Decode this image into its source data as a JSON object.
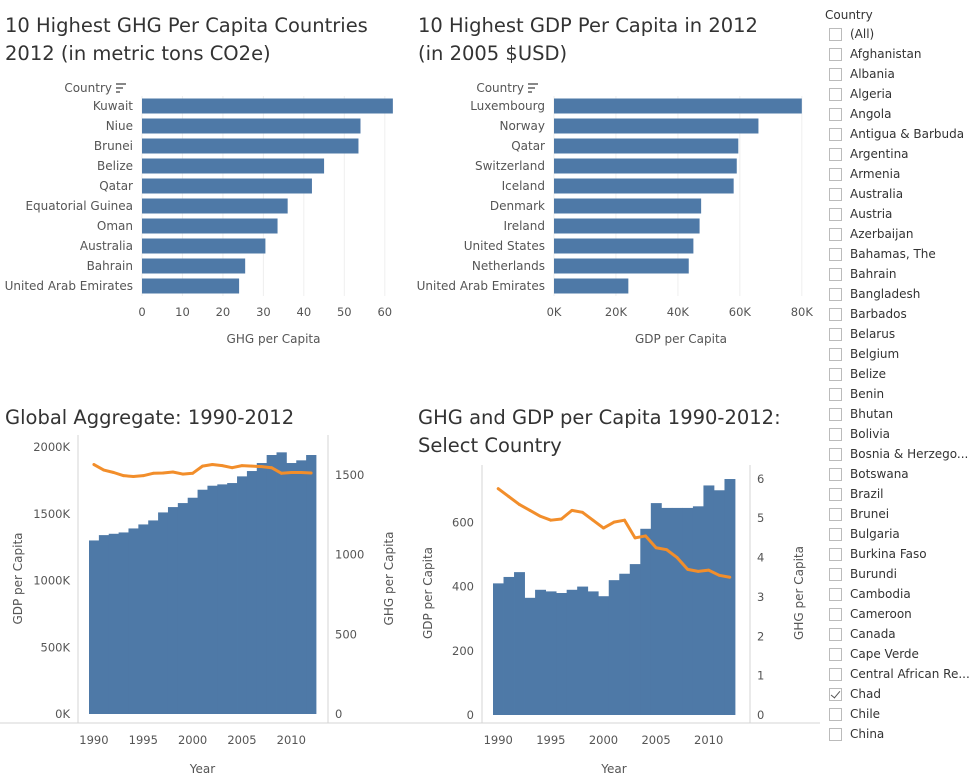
{
  "titles": {
    "ghg_top10": "10 Highest GHG Per Capita Countries\n2012 (in metric tons CO2e)",
    "gdp_top10": "10 Highest GDP Per Capita in 2012\n(in 2005 $USD)",
    "global": "Global Aggregate: 1990-2012",
    "select": "GHG and GDP per Capita 1990-2012:\nSelect Country"
  },
  "colors": {
    "bar": "#4e79a7",
    "line": "#f28e2b",
    "axis": "#d4d4d4",
    "grid": "#efefef"
  },
  "icons": {
    "sort": "sort-descending-icon",
    "check": "checkmark-icon"
  },
  "filter": {
    "title": "Country",
    "items": [
      {
        "label": "(All)",
        "checked": false
      },
      {
        "label": "Afghanistan",
        "checked": false
      },
      {
        "label": "Albania",
        "checked": false
      },
      {
        "label": "Algeria",
        "checked": false
      },
      {
        "label": "Angola",
        "checked": false
      },
      {
        "label": "Antigua & Barbuda",
        "checked": false
      },
      {
        "label": "Argentina",
        "checked": false
      },
      {
        "label": "Armenia",
        "checked": false
      },
      {
        "label": "Australia",
        "checked": false
      },
      {
        "label": "Austria",
        "checked": false
      },
      {
        "label": "Azerbaijan",
        "checked": false
      },
      {
        "label": "Bahamas, The",
        "checked": false
      },
      {
        "label": "Bahrain",
        "checked": false
      },
      {
        "label": "Bangladesh",
        "checked": false
      },
      {
        "label": "Barbados",
        "checked": false
      },
      {
        "label": "Belarus",
        "checked": false
      },
      {
        "label": "Belgium",
        "checked": false
      },
      {
        "label": "Belize",
        "checked": false
      },
      {
        "label": "Benin",
        "checked": false
      },
      {
        "label": "Bhutan",
        "checked": false
      },
      {
        "label": "Bolivia",
        "checked": false
      },
      {
        "label": "Bosnia & Herzego...",
        "checked": false
      },
      {
        "label": "Botswana",
        "checked": false
      },
      {
        "label": "Brazil",
        "checked": false
      },
      {
        "label": "Brunei",
        "checked": false
      },
      {
        "label": "Bulgaria",
        "checked": false
      },
      {
        "label": "Burkina Faso",
        "checked": false
      },
      {
        "label": "Burundi",
        "checked": false
      },
      {
        "label": "Cambodia",
        "checked": false
      },
      {
        "label": "Cameroon",
        "checked": false
      },
      {
        "label": "Canada",
        "checked": false
      },
      {
        "label": "Cape Verde",
        "checked": false
      },
      {
        "label": "Central African Re...",
        "checked": false
      },
      {
        "label": "Chad",
        "checked": true
      },
      {
        "label": "Chile",
        "checked": false
      },
      {
        "label": "China",
        "checked": false
      }
    ]
  },
  "chart_data": [
    {
      "id": "ghg_top10",
      "type": "bar",
      "orientation": "horizontal",
      "row_header": "Country",
      "xlabel": "GHG per Capita",
      "xlim": [
        0,
        65
      ],
      "ticks": [
        0,
        10,
        20,
        30,
        40,
        50,
        60
      ],
      "tick_labels": [
        "0",
        "10",
        "20",
        "30",
        "40",
        "50",
        "60"
      ],
      "categories": [
        "Kuwait",
        "Niue",
        "Brunei",
        "Belize",
        "Qatar",
        "Equatorial Guinea",
        "Oman",
        "Australia",
        "Bahrain",
        "United Arab Emirates"
      ],
      "values": [
        62,
        54,
        53.5,
        45,
        42,
        36,
        33.5,
        30.5,
        25.5,
        24
      ]
    },
    {
      "id": "gdp_top10",
      "type": "bar",
      "orientation": "horizontal",
      "row_header": "Country",
      "xlabel": "GDP per Capita",
      "xlim": [
        0,
        82000
      ],
      "ticks": [
        0,
        20000,
        40000,
        60000,
        80000
      ],
      "tick_labels": [
        "0K",
        "20K",
        "40K",
        "60K",
        "80K"
      ],
      "categories": [
        "Luxembourg",
        "Norway",
        "Qatar",
        "Switzerland",
        "Iceland",
        "Denmark",
        "Ireland",
        "United States",
        "Netherlands",
        "United Arab Emirates"
      ],
      "values": [
        80000,
        66000,
        59500,
        59000,
        58000,
        47500,
        47000,
        45000,
        43500,
        24000
      ]
    },
    {
      "id": "global",
      "type": "bar",
      "xlabel": "Year",
      "ylabel": "GDP per Capita",
      "ylabel2": "GHG per Capita",
      "x": [
        1990,
        1991,
        1992,
        1993,
        1994,
        1995,
        1996,
        1997,
        1998,
        1999,
        2000,
        2001,
        2002,
        2003,
        2004,
        2005,
        2006,
        2007,
        2008,
        2009,
        2010,
        2011,
        2012
      ],
      "ylim": [
        0,
        2030000
      ],
      "yticks": [
        0,
        500000,
        1000000,
        1500000,
        2000000
      ],
      "ytick_labels": [
        "0K",
        "500K",
        "1000K",
        "1500K",
        "2000K"
      ],
      "y2lim": [
        0,
        1700
      ],
      "y2ticks": [
        0,
        500,
        1000,
        1500
      ],
      "y2tick_labels": [
        "0",
        "500",
        "1000",
        "1500"
      ],
      "xticks": [
        1990,
        1995,
        2000,
        2005,
        2010
      ],
      "series": [
        {
          "kind": "bar",
          "axis": "left",
          "values": [
            1300000,
            1340000,
            1350000,
            1360000,
            1390000,
            1420000,
            1450000,
            1510000,
            1550000,
            1580000,
            1620000,
            1680000,
            1710000,
            1720000,
            1730000,
            1780000,
            1820000,
            1880000,
            1940000,
            1960000,
            1880000,
            1900000,
            1940000
          ]
        },
        {
          "kind": "line",
          "axis": "right",
          "values": [
            1565,
            1530,
            1515,
            1495,
            1490,
            1495,
            1510,
            1512,
            1518,
            1505,
            1510,
            1555,
            1565,
            1558,
            1545,
            1558,
            1555,
            1552,
            1545,
            1510,
            1515,
            1515,
            1512
          ]
        }
      ]
    },
    {
      "id": "select",
      "type": "bar",
      "xlabel": "Year",
      "ylabel": "GDP per Capita",
      "ylabel2": "GHG per Capita",
      "x": [
        1990,
        1991,
        1992,
        1993,
        1994,
        1995,
        1996,
        1997,
        1998,
        1999,
        2000,
        2001,
        2002,
        2003,
        2004,
        2005,
        2006,
        2007,
        2008,
        2009,
        2010,
        2011,
        2012
      ],
      "ylim": [
        0,
        760
      ],
      "yticks": [
        0,
        200,
        400,
        600
      ],
      "ytick_labels": [
        "0",
        "200",
        "400",
        "600"
      ],
      "y2lim": [
        0,
        6.2
      ],
      "y2ticks": [
        0,
        1,
        2,
        3,
        4,
        5,
        6
      ],
      "y2tick_labels": [
        "0",
        "1",
        "2",
        "3",
        "4",
        "5",
        "6"
      ],
      "xticks": [
        1990,
        1995,
        2000,
        2005,
        2010
      ],
      "series": [
        {
          "kind": "bar",
          "axis": "left",
          "values": [
            410,
            430,
            445,
            365,
            390,
            385,
            380,
            390,
            400,
            385,
            370,
            420,
            440,
            470,
            580,
            660,
            645,
            645,
            645,
            650,
            715,
            700,
            735
          ]
        },
        {
          "kind": "line",
          "axis": "right",
          "values": [
            5.75,
            5.55,
            5.35,
            5.2,
            5.05,
            4.95,
            4.98,
            5.2,
            5.15,
            4.95,
            4.75,
            4.9,
            4.95,
            4.5,
            4.55,
            4.25,
            4.2,
            4.0,
            3.7,
            3.65,
            3.68,
            3.55,
            3.5
          ]
        }
      ]
    }
  ]
}
